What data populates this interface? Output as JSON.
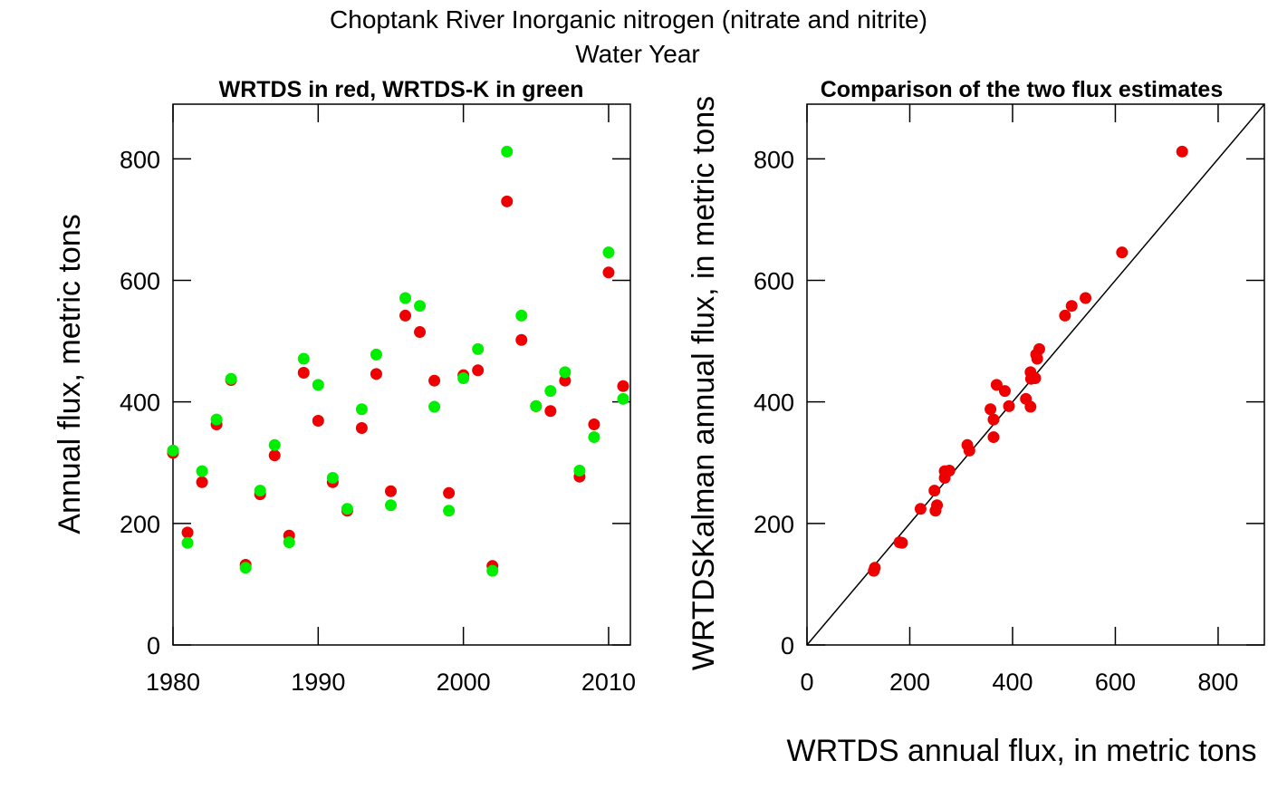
{
  "page": {
    "title_line1": "Choptank River Inorganic nitrogen (nitrate and nitrite)",
    "title_line2": "Water Year"
  },
  "colors": {
    "wrtds": "#EE0000",
    "wrtds_k": "#00EE00",
    "axis": "#000000",
    "line": "#000000"
  },
  "chart_data": [
    {
      "type": "scatter",
      "title": "WRTDS in red, WRTDS-K in green",
      "xlabel": "",
      "ylabel": "Annual flux, metric tons",
      "xlim": [
        1980,
        2011.5
      ],
      "ylim": [
        0,
        890
      ],
      "xticks": [
        1980,
        1990,
        2000,
        2010
      ],
      "yticks": [
        0,
        200,
        400,
        600,
        800
      ],
      "grid": false,
      "legend": "none",
      "series": [
        {
          "color": "#EE0000",
          "x": [
            1980,
            1981,
            1982,
            1983,
            1984,
            1985,
            1986,
            1987,
            1988,
            1989,
            1990,
            1991,
            1992,
            1993,
            1994,
            1995,
            1996,
            1997,
            1998,
            1999,
            2000,
            2001,
            2002,
            2003,
            2004,
            2005,
            2006,
            2007,
            2008,
            2009,
            2010,
            2011
          ],
          "y": [
            316,
            185,
            268,
            363,
            436,
            132,
            248,
            312,
            180,
            448,
            369,
            268,
            221,
            357,
            446,
            253,
            542,
            515,
            435,
            250,
            444,
            452,
            130,
            730,
            502,
            393,
            385,
            435,
            277,
            363,
            613,
            426
          ]
        },
        {
          "color": "#00EE00",
          "x": [
            1980,
            1981,
            1982,
            1983,
            1984,
            1985,
            1986,
            1987,
            1988,
            1989,
            1990,
            1991,
            1992,
            1993,
            1994,
            1995,
            1996,
            1997,
            1998,
            1999,
            2000,
            2001,
            2002,
            2003,
            2004,
            2005,
            2006,
            2007,
            2008,
            2009,
            2010,
            2011
          ],
          "y": [
            320,
            168,
            286,
            371,
            438,
            127,
            254,
            329,
            169,
            471,
            428,
            275,
            224,
            388,
            478,
            230,
            571,
            558,
            392,
            221,
            439,
            487,
            122,
            812,
            542,
            393,
            418,
            449,
            287,
            342,
            646,
            405
          ]
        }
      ]
    },
    {
      "type": "scatter",
      "title": "Comparison of the two flux estimates",
      "xlabel": "WRTDS annual flux, in metric tons",
      "ylabel": "WRTDSKalman annual flux, in metric tons",
      "xlim": [
        0,
        890
      ],
      "ylim": [
        0,
        890
      ],
      "xticks": [
        0,
        200,
        400,
        600,
        800
      ],
      "yticks": [
        0,
        200,
        400,
        600,
        800
      ],
      "grid": false,
      "legend": "none",
      "reference_line": "y = x",
      "series": [
        {
          "color": "#EE0000",
          "x": [
            316,
            185,
            268,
            363,
            436,
            132,
            248,
            312,
            180,
            448,
            369,
            268,
            221,
            357,
            446,
            253,
            542,
            515,
            435,
            250,
            444,
            452,
            130,
            730,
            502,
            393,
            385,
            435,
            277,
            363,
            613,
            426
          ],
          "y": [
            320,
            168,
            286,
            371,
            438,
            127,
            254,
            329,
            169,
            471,
            428,
            275,
            224,
            388,
            478,
            230,
            571,
            558,
            392,
            221,
            439,
            487,
            122,
            812,
            542,
            393,
            418,
            449,
            287,
            342,
            646,
            405
          ]
        }
      ]
    }
  ]
}
